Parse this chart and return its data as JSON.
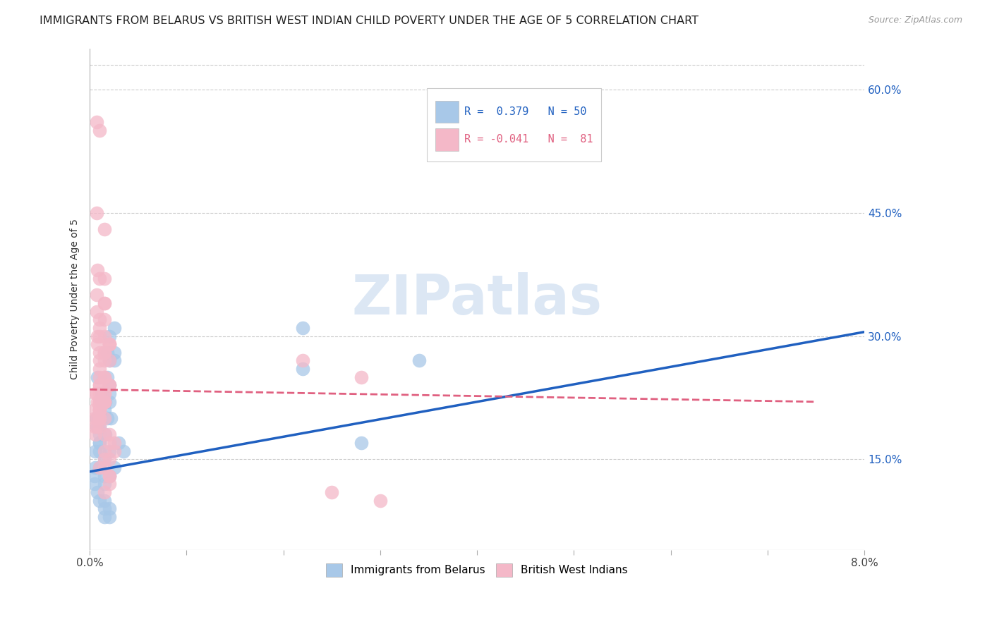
{
  "title": "IMMIGRANTS FROM BELARUS VS BRITISH WEST INDIAN CHILD POVERTY UNDER THE AGE OF 5 CORRELATION CHART",
  "source": "Source: ZipAtlas.com",
  "ylabel": "Child Poverty Under the Age of 5",
  "ytick_vals": [
    0.15,
    0.3,
    0.45,
    0.6
  ],
  "xmin": 0.0,
  "xmax": 0.08,
  "ymin": 0.04,
  "ymax": 0.65,
  "watermark": "ZIPatlas",
  "blue_color": "#a8c8e8",
  "pink_color": "#f4b8c8",
  "blue_line_color": "#2060c0",
  "pink_line_color": "#e06080",
  "blue_scatter": [
    [
      0.0005,
      0.13
    ],
    [
      0.0008,
      0.11
    ],
    [
      0.001,
      0.17
    ],
    [
      0.0006,
      0.14
    ],
    [
      0.0012,
      0.22
    ],
    [
      0.0015,
      0.21
    ],
    [
      0.002,
      0.24
    ],
    [
      0.0025,
      0.28
    ],
    [
      0.0007,
      0.2
    ],
    [
      0.001,
      0.19
    ],
    [
      0.0015,
      0.15
    ],
    [
      0.0012,
      0.22
    ],
    [
      0.0018,
      0.25
    ],
    [
      0.002,
      0.3
    ],
    [
      0.0025,
      0.27
    ],
    [
      0.0005,
      0.12
    ],
    [
      0.001,
      0.18
    ],
    [
      0.0015,
      0.08
    ],
    [
      0.002,
      0.09
    ],
    [
      0.0025,
      0.14
    ],
    [
      0.003,
      0.17
    ],
    [
      0.0035,
      0.16
    ],
    [
      0.0008,
      0.25
    ],
    [
      0.0012,
      0.23
    ],
    [
      0.0018,
      0.2
    ],
    [
      0.002,
      0.22
    ],
    [
      0.0022,
      0.2
    ],
    [
      0.0006,
      0.16
    ],
    [
      0.001,
      0.14
    ],
    [
      0.0015,
      0.12
    ],
    [
      0.002,
      0.08
    ],
    [
      0.001,
      0.1
    ],
    [
      0.0016,
      0.22
    ],
    [
      0.002,
      0.23
    ],
    [
      0.0018,
      0.28
    ],
    [
      0.002,
      0.27
    ],
    [
      0.0025,
      0.31
    ],
    [
      0.022,
      0.31
    ],
    [
      0.028,
      0.17
    ],
    [
      0.034,
      0.27
    ],
    [
      0.0008,
      0.19
    ],
    [
      0.001,
      0.16
    ],
    [
      0.0015,
      0.13
    ],
    [
      0.0016,
      0.18
    ],
    [
      0.002,
      0.16
    ],
    [
      0.002,
      0.13
    ],
    [
      0.0015,
      0.1
    ],
    [
      0.0015,
      0.09
    ],
    [
      0.022,
      0.26
    ],
    [
      0.001,
      0.17
    ]
  ],
  "pink_scatter": [
    [
      0.0005,
      0.2
    ],
    [
      0.001,
      0.25
    ],
    [
      0.0008,
      0.3
    ],
    [
      0.001,
      0.31
    ],
    [
      0.0007,
      0.35
    ],
    [
      0.001,
      0.22
    ],
    [
      0.0006,
      0.23
    ],
    [
      0.001,
      0.26
    ],
    [
      0.0005,
      0.21
    ],
    [
      0.001,
      0.28
    ],
    [
      0.0007,
      0.33
    ],
    [
      0.001,
      0.24
    ],
    [
      0.0015,
      0.34
    ],
    [
      0.0008,
      0.38
    ],
    [
      0.001,
      0.37
    ],
    [
      0.0007,
      0.56
    ],
    [
      0.001,
      0.55
    ],
    [
      0.0015,
      0.43
    ],
    [
      0.0008,
      0.29
    ],
    [
      0.001,
      0.27
    ],
    [
      0.001,
      0.3
    ],
    [
      0.0015,
      0.28
    ],
    [
      0.0007,
      0.45
    ],
    [
      0.0015,
      0.32
    ],
    [
      0.002,
      0.29
    ],
    [
      0.0015,
      0.25
    ],
    [
      0.001,
      0.24
    ],
    [
      0.0005,
      0.19
    ],
    [
      0.001,
      0.22
    ],
    [
      0.0015,
      0.2
    ],
    [
      0.0006,
      0.18
    ],
    [
      0.001,
      0.23
    ],
    [
      0.0015,
      0.27
    ],
    [
      0.0008,
      0.22
    ],
    [
      0.001,
      0.21
    ],
    [
      0.0015,
      0.23
    ],
    [
      0.001,
      0.22
    ],
    [
      0.0015,
      0.23
    ],
    [
      0.002,
      0.24
    ],
    [
      0.0015,
      0.14
    ],
    [
      0.002,
      0.13
    ],
    [
      0.0015,
      0.16
    ],
    [
      0.002,
      0.15
    ],
    [
      0.0015,
      0.11
    ],
    [
      0.002,
      0.12
    ],
    [
      0.002,
      0.29
    ],
    [
      0.0025,
      0.16
    ],
    [
      0.002,
      0.17
    ],
    [
      0.0015,
      0.22
    ],
    [
      0.002,
      0.18
    ],
    [
      0.0025,
      0.17
    ],
    [
      0.002,
      0.24
    ],
    [
      0.0015,
      0.22
    ],
    [
      0.001,
      0.19
    ],
    [
      0.0007,
      0.2
    ],
    [
      0.0015,
      0.3
    ],
    [
      0.002,
      0.27
    ],
    [
      0.0015,
      0.28
    ],
    [
      0.001,
      0.21
    ],
    [
      0.022,
      0.27
    ],
    [
      0.025,
      0.11
    ],
    [
      0.028,
      0.25
    ],
    [
      0.03,
      0.1
    ],
    [
      0.0015,
      0.25
    ],
    [
      0.0015,
      0.28
    ],
    [
      0.0015,
      0.34
    ],
    [
      0.0015,
      0.37
    ],
    [
      0.002,
      0.29
    ],
    [
      0.001,
      0.32
    ],
    [
      0.0015,
      0.22
    ],
    [
      0.002,
      0.13
    ],
    [
      0.0015,
      0.15
    ],
    [
      0.001,
      0.14
    ],
    [
      0.0007,
      0.23
    ],
    [
      0.001,
      0.2
    ],
    [
      0.0015,
      0.18
    ],
    [
      0.0015,
      0.22
    ],
    [
      0.001,
      0.21
    ],
    [
      0.001,
      0.22
    ],
    [
      0.0007,
      0.19
    ],
    [
      0.001,
      0.2
    ]
  ],
  "blue_line_x": [
    0.0,
    0.08
  ],
  "blue_line_y": [
    0.135,
    0.305
  ],
  "pink_line_x": [
    0.0,
    0.075
  ],
  "pink_line_y": [
    0.235,
    0.22
  ],
  "background_color": "#ffffff",
  "grid_color": "#cccccc",
  "title_fontsize": 11.5,
  "label_fontsize": 10,
  "legend_blue_text": "R =  0.379   N = 50",
  "legend_pink_text": "R = -0.041   N =  81"
}
